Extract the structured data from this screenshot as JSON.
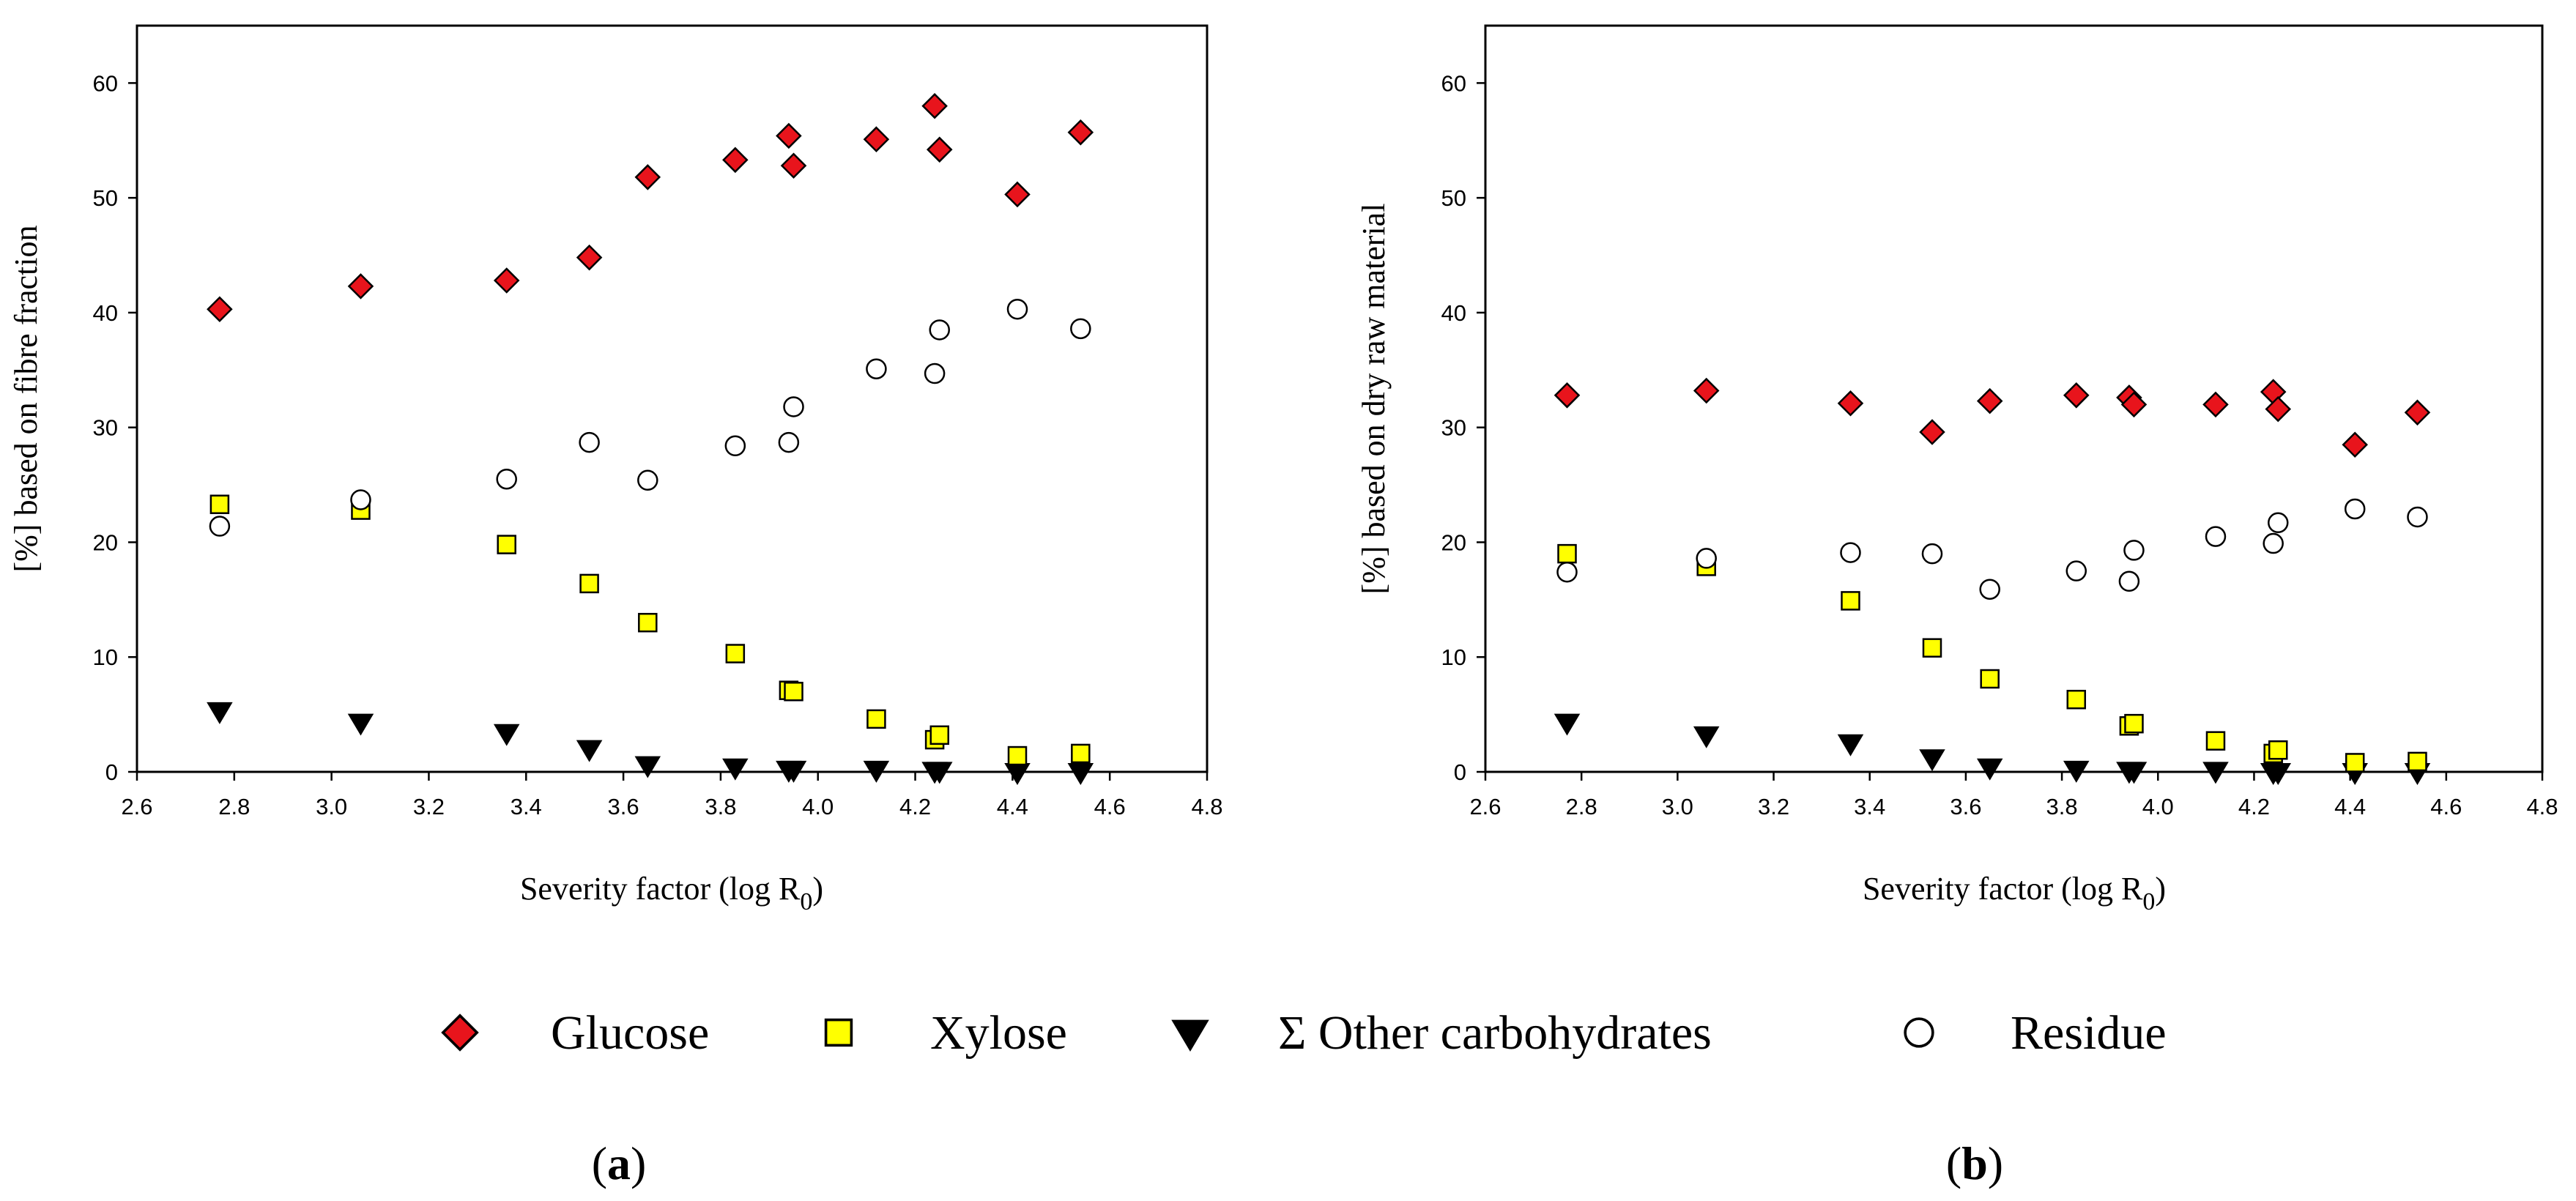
{
  "chart_data": [
    {
      "type": "scatter",
      "panel_label": "a",
      "xlabel": "Severity factor (log R",
      "xlabel_subscript": "0",
      "xlabel_close": ")",
      "ylabel": "[%] based on fibre fraction",
      "xlim": [
        2.6,
        4.8
      ],
      "ylim": [
        0,
        65
      ],
      "xticks": [
        "2.6",
        "2.8",
        "3.0",
        "3.2",
        "3.4",
        "3.6",
        "3.8",
        "4.0",
        "4.2",
        "4.4",
        "4.6",
        "4.8"
      ],
      "yticks": [
        "0",
        "10",
        "20",
        "30",
        "40",
        "50",
        "60"
      ],
      "series": [
        {
          "name": "Glucose",
          "marker": "diamond",
          "color": "#e8141c",
          "points": [
            {
              "x": 2.77,
              "y": 40.3
            },
            {
              "x": 3.06,
              "y": 42.3
            },
            {
              "x": 3.36,
              "y": 42.8
            },
            {
              "x": 3.53,
              "y": 44.8
            },
            {
              "x": 3.65,
              "y": 51.8
            },
            {
              "x": 3.83,
              "y": 53.3
            },
            {
              "x": 3.94,
              "y": 55.4
            },
            {
              "x": 3.95,
              "y": 52.8
            },
            {
              "x": 4.12,
              "y": 55.1
            },
            {
              "x": 4.24,
              "y": 58.0
            },
            {
              "x": 4.25,
              "y": 54.2
            },
            {
              "x": 4.41,
              "y": 50.3
            },
            {
              "x": 4.54,
              "y": 55.7
            }
          ]
        },
        {
          "name": "Xylose",
          "marker": "square",
          "color": "#ffff00",
          "points": [
            {
              "x": 2.77,
              "y": 23.3
            },
            {
              "x": 3.06,
              "y": 22.8
            },
            {
              "x": 3.36,
              "y": 19.8
            },
            {
              "x": 3.53,
              "y": 16.4
            },
            {
              "x": 3.65,
              "y": 13.0
            },
            {
              "x": 3.83,
              "y": 10.3
            },
            {
              "x": 3.94,
              "y": 7.1
            },
            {
              "x": 3.95,
              "y": 7.0
            },
            {
              "x": 4.12,
              "y": 4.6
            },
            {
              "x": 4.24,
              "y": 2.8
            },
            {
              "x": 4.25,
              "y": 3.2
            },
            {
              "x": 4.41,
              "y": 1.4
            },
            {
              "x": 4.54,
              "y": 1.6
            }
          ]
        },
        {
          "name": "Σ Other carbohydrates",
          "marker": "triangle-down",
          "color": "#000000",
          "points": [
            {
              "x": 2.77,
              "y": 5.3
            },
            {
              "x": 3.06,
              "y": 4.3
            },
            {
              "x": 3.36,
              "y": 3.4
            },
            {
              "x": 3.53,
              "y": 2.0
            },
            {
              "x": 3.65,
              "y": 0.6
            },
            {
              "x": 3.83,
              "y": 0.4
            },
            {
              "x": 3.94,
              "y": 0.2
            },
            {
              "x": 3.95,
              "y": 0.2
            },
            {
              "x": 4.12,
              "y": 0.2
            },
            {
              "x": 4.24,
              "y": 0.1
            },
            {
              "x": 4.25,
              "y": 0.1
            },
            {
              "x": 4.41,
              "y": 0.0
            },
            {
              "x": 4.54,
              "y": 0.0
            }
          ]
        },
        {
          "name": "Residue",
          "marker": "circle",
          "color": "#ffffff",
          "points": [
            {
              "x": 2.77,
              "y": 21.4
            },
            {
              "x": 3.06,
              "y": 23.7
            },
            {
              "x": 3.36,
              "y": 25.5
            },
            {
              "x": 3.53,
              "y": 28.7
            },
            {
              "x": 3.65,
              "y": 25.4
            },
            {
              "x": 3.83,
              "y": 28.4
            },
            {
              "x": 3.94,
              "y": 28.7
            },
            {
              "x": 3.95,
              "y": 31.8
            },
            {
              "x": 4.12,
              "y": 35.1
            },
            {
              "x": 4.24,
              "y": 34.7
            },
            {
              "x": 4.25,
              "y": 38.5
            },
            {
              "x": 4.41,
              "y": 40.3
            },
            {
              "x": 4.54,
              "y": 38.6
            }
          ]
        }
      ]
    },
    {
      "type": "scatter",
      "panel_label": "b",
      "xlabel": "Severity factor (log R",
      "xlabel_subscript": "0",
      "xlabel_close": ")",
      "ylabel": "[%] based on dry raw material",
      "xlim": [
        2.6,
        4.8
      ],
      "ylim": [
        0,
        65
      ],
      "xticks": [
        "2.6",
        "2.8",
        "3.0",
        "3.2",
        "3.4",
        "3.6",
        "3.8",
        "4.0",
        "4.2",
        "4.4",
        "4.6",
        "4.8"
      ],
      "yticks": [
        "0",
        "10",
        "20",
        "30",
        "40",
        "50",
        "60"
      ],
      "series": [
        {
          "name": "Glucose",
          "marker": "diamond",
          "color": "#e8141c",
          "points": [
            {
              "x": 2.77,
              "y": 32.8
            },
            {
              "x": 3.06,
              "y": 33.2
            },
            {
              "x": 3.36,
              "y": 32.1
            },
            {
              "x": 3.53,
              "y": 29.6
            },
            {
              "x": 3.65,
              "y": 32.3
            },
            {
              "x": 3.83,
              "y": 32.8
            },
            {
              "x": 3.94,
              "y": 32.6
            },
            {
              "x": 3.95,
              "y": 32.0
            },
            {
              "x": 4.12,
              "y": 32.0
            },
            {
              "x": 4.24,
              "y": 33.1
            },
            {
              "x": 4.25,
              "y": 31.6
            },
            {
              "x": 4.41,
              "y": 28.5
            },
            {
              "x": 4.54,
              "y": 31.3
            }
          ]
        },
        {
          "name": "Xylose",
          "marker": "square",
          "color": "#ffff00",
          "points": [
            {
              "x": 2.77,
              "y": 19.0
            },
            {
              "x": 3.06,
              "y": 17.9
            },
            {
              "x": 3.36,
              "y": 14.9
            },
            {
              "x": 3.53,
              "y": 10.8
            },
            {
              "x": 3.65,
              "y": 8.1
            },
            {
              "x": 3.83,
              "y": 6.3
            },
            {
              "x": 3.94,
              "y": 4.0
            },
            {
              "x": 3.95,
              "y": 4.2
            },
            {
              "x": 4.12,
              "y": 2.7
            },
            {
              "x": 4.24,
              "y": 1.6
            },
            {
              "x": 4.25,
              "y": 1.9
            },
            {
              "x": 4.41,
              "y": 0.8
            },
            {
              "x": 4.54,
              "y": 0.9
            }
          ]
        },
        {
          "name": "Σ Other carbohydrates",
          "marker": "triangle-down",
          "color": "#000000",
          "points": [
            {
              "x": 2.77,
              "y": 4.3
            },
            {
              "x": 3.06,
              "y": 3.2
            },
            {
              "x": 3.36,
              "y": 2.5
            },
            {
              "x": 3.53,
              "y": 1.2
            },
            {
              "x": 3.65,
              "y": 0.4
            },
            {
              "x": 3.83,
              "y": 0.2
            },
            {
              "x": 3.94,
              "y": 0.1
            },
            {
              "x": 3.95,
              "y": 0.1
            },
            {
              "x": 4.12,
              "y": 0.1
            },
            {
              "x": 4.24,
              "y": 0.0
            },
            {
              "x": 4.25,
              "y": 0.0
            },
            {
              "x": 4.41,
              "y": 0.0
            },
            {
              "x": 4.54,
              "y": 0.0
            }
          ]
        },
        {
          "name": "Residue",
          "marker": "circle",
          "color": "#ffffff",
          "points": [
            {
              "x": 2.77,
              "y": 17.4
            },
            {
              "x": 3.06,
              "y": 18.6
            },
            {
              "x": 3.36,
              "y": 19.1
            },
            {
              "x": 3.53,
              "y": 19.0
            },
            {
              "x": 3.65,
              "y": 15.9
            },
            {
              "x": 3.83,
              "y": 17.5
            },
            {
              "x": 3.94,
              "y": 16.6
            },
            {
              "x": 3.95,
              "y": 19.3
            },
            {
              "x": 4.12,
              "y": 20.5
            },
            {
              "x": 4.24,
              "y": 19.9
            },
            {
              "x": 4.25,
              "y": 21.7
            },
            {
              "x": 4.41,
              "y": 22.9
            },
            {
              "x": 4.54,
              "y": 22.2
            }
          ]
        }
      ]
    }
  ],
  "legend": {
    "placement": "bottom-center",
    "items": [
      {
        "label": "Glucose",
        "marker": "diamond",
        "color": "#e8141c"
      },
      {
        "label": "Xylose",
        "marker": "square",
        "color": "#ffff00"
      },
      {
        "label": "Σ Other carbohydrates",
        "marker": "triangle-down",
        "color": "#000000"
      },
      {
        "label": "Residue",
        "marker": "circle",
        "color": "#ffffff"
      }
    ]
  }
}
